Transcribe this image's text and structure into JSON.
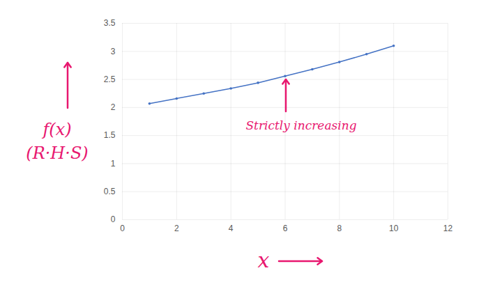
{
  "chart_data": {
    "type": "line",
    "xlabel": "x",
    "ylabel": "f(x)\n(R·H·S)",
    "annotations": [
      {
        "text": "Strictly increasing"
      }
    ],
    "x": [
      1,
      2,
      3,
      4,
      5,
      6,
      7,
      8,
      9,
      10
    ],
    "values": [
      2.07,
      2.16,
      2.25,
      2.34,
      2.44,
      2.56,
      2.68,
      2.81,
      2.95,
      3.1
    ],
    "color": "#4472c4",
    "marker": "circle",
    "xlim": [
      0,
      12
    ],
    "xticks": [
      0,
      2,
      4,
      6,
      8,
      10,
      12
    ],
    "ylim": [
      0,
      3.5
    ],
    "yticks": [
      0,
      0.5,
      1,
      1.5,
      2,
      2.5,
      3,
      3.5
    ],
    "grid": true
  }
}
